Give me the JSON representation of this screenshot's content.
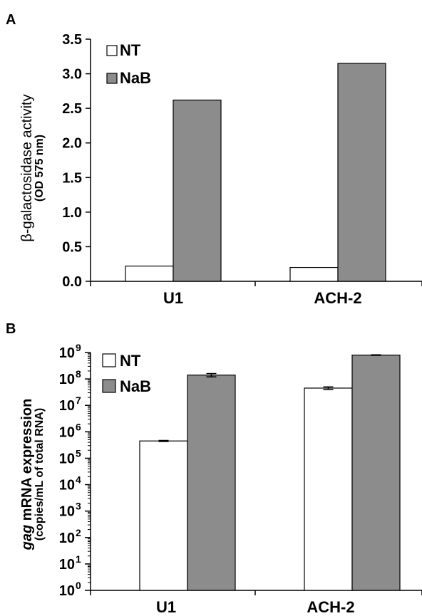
{
  "colors": {
    "NT": "#ffffff",
    "NaB": "#8c8c8c",
    "stroke": "#000000"
  },
  "chart_data": [
    {
      "panel": "A",
      "type": "bar",
      "categories": [
        "U1",
        "ACH-2"
      ],
      "series": [
        {
          "name": "NT",
          "values": [
            0.22,
            0.2
          ]
        },
        {
          "name": "NaB",
          "values": [
            2.62,
            3.15
          ]
        }
      ],
      "ylabel": "β-galactosidase activity",
      "ylabel_sub": "(OD 575 nm)",
      "ylim": [
        0,
        3.5
      ],
      "yticks": [
        "0.0",
        "0.5",
        "1.0",
        "1.5",
        "2.0",
        "2.5",
        "3.0",
        "3.5"
      ],
      "yscale": "linear",
      "legend": [
        "NT",
        "NaB"
      ],
      "legend_position": "top-left"
    },
    {
      "panel": "B",
      "type": "bar",
      "categories": [
        "U1",
        "ACH-2"
      ],
      "series": [
        {
          "name": "NT",
          "values": [
            450000,
            45000000
          ],
          "error": [
            20000,
            5000000
          ]
        },
        {
          "name": "NaB",
          "values": [
            140000000,
            800000000
          ],
          "error": [
            20000000,
            20000000
          ]
        }
      ],
      "ylabel_italic": "gag",
      "ylabel": " mRNA expression",
      "ylabel_sub": "(copies/mL of total RNA)",
      "ylim": [
        1,
        1000000000
      ],
      "yscale": "log",
      "ytick_base": "10",
      "ytick_exponents": [
        "0",
        "1",
        "2",
        "3",
        "4",
        "5",
        "6",
        "7",
        "8",
        "9"
      ],
      "legend": [
        "NT",
        "NaB"
      ],
      "legend_position": "top-left"
    }
  ]
}
